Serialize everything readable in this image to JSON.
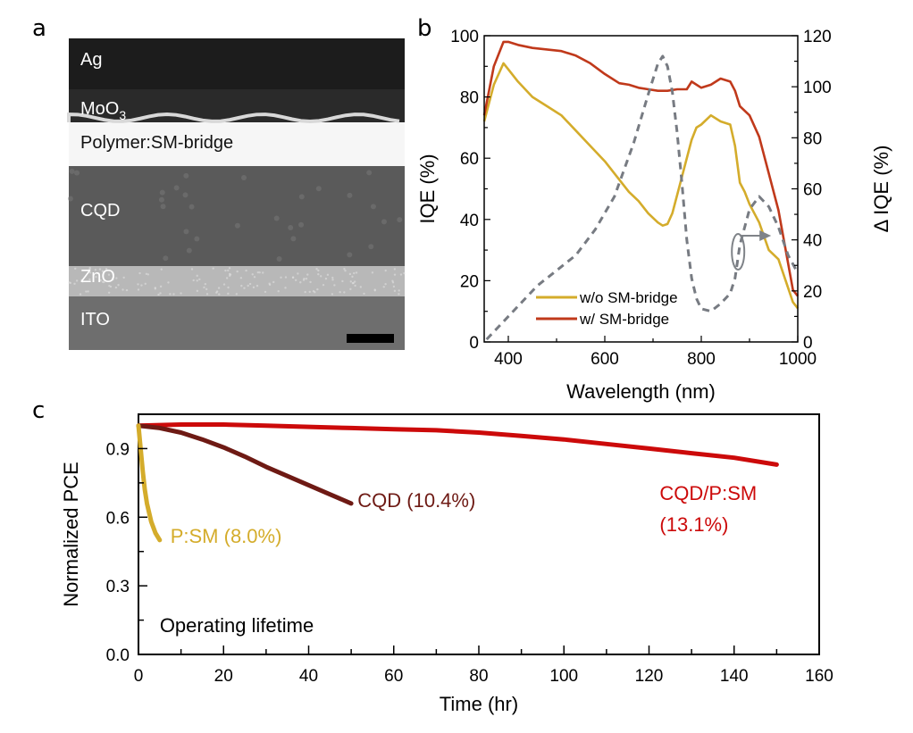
{
  "figure": {
    "panels": [
      "a",
      "b",
      "c"
    ]
  },
  "panel_a": {
    "letter": "a",
    "type": "TEM cross-section image",
    "layers": [
      {
        "name": "Ag",
        "label": "Ag",
        "tone": "#1c1c1c"
      },
      {
        "name": "MoO3",
        "label": "MoO",
        "subscript": "3",
        "tone": "#2a2a2a"
      },
      {
        "name": "Polymer:SM-bridge",
        "label": "Polymer:SM-bridge",
        "tone": "#f6f6f6"
      },
      {
        "name": "CQD",
        "label": "CQD",
        "tone": "#5a5a5a"
      },
      {
        "name": "ZnO",
        "label": "ZnO",
        "tone": "#b8b8b8"
      },
      {
        "name": "ITO",
        "label": "ITO",
        "tone": "#6e6e6e"
      }
    ],
    "scale_bar": true
  },
  "chart_data": [
    {
      "panel": "b",
      "letter": "b",
      "type": "line",
      "title": "",
      "xlabel": "Wavelength (nm)",
      "ylabel": "IQE (%)",
      "y2label": "Δ IQE (%)",
      "xlim": [
        350,
        1000
      ],
      "ylim": [
        0,
        100
      ],
      "y2lim": [
        0,
        120
      ],
      "xticks": [
        400,
        600,
        800,
        1000
      ],
      "yticks": [
        0,
        20,
        40,
        60,
        80,
        100
      ],
      "y2ticks": [
        0,
        20,
        40,
        60,
        80,
        100,
        120
      ],
      "grid": false,
      "legend": {
        "placement": "bottom-center",
        "entries": [
          "w/o SM-bridge",
          "w/   SM-bridge"
        ]
      },
      "annotation": {
        "type": "ellipse-arrow",
        "points_to": "right-axis",
        "near_x": 880
      },
      "series": [
        {
          "name": "w/o SM-bridge",
          "axis": "left",
          "color": "#d4ac2b",
          "style": "solid",
          "x": [
            350,
            370,
            390,
            400,
            420,
            450,
            480,
            510,
            540,
            570,
            600,
            630,
            650,
            670,
            690,
            710,
            720,
            730,
            740,
            760,
            780,
            790,
            800,
            820,
            840,
            860,
            870,
            880,
            890,
            900,
            920,
            940,
            960,
            975,
            990,
            1000
          ],
          "y": [
            72,
            84,
            91,
            89,
            85,
            80,
            77,
            74,
            69,
            64,
            59,
            53,
            49,
            46,
            42,
            39,
            38,
            38.5,
            42,
            54,
            66,
            70,
            71,
            74,
            72,
            71,
            64,
            52,
            49,
            45,
            39,
            30,
            27,
            20,
            13,
            11
          ]
        },
        {
          "name": "w/   SM-bridge",
          "axis": "left",
          "color": "#c0391b",
          "style": "solid",
          "x": [
            350,
            370,
            390,
            400,
            420,
            450,
            480,
            510,
            540,
            570,
            600,
            630,
            650,
            670,
            690,
            710,
            730,
            750,
            770,
            780,
            800,
            820,
            840,
            860,
            870,
            880,
            900,
            920,
            940,
            960,
            975,
            990,
            1000
          ],
          "y": [
            74,
            90,
            98,
            98,
            97,
            96,
            95.5,
            95,
            93.5,
            91,
            87.5,
            84.5,
            84,
            83,
            82.5,
            82,
            82,
            82.5,
            82.5,
            85,
            83,
            84,
            86,
            85,
            82,
            77,
            74,
            67,
            55,
            43,
            30,
            17,
            15
          ]
        },
        {
          "name": "Δ IQE",
          "axis": "right",
          "color": "#777b82",
          "style": "dashed",
          "x": [
            355,
            380,
            420,
            460,
            500,
            540,
            580,
            620,
            660,
            690,
            710,
            720,
            730,
            740,
            750,
            760,
            770,
            780,
            790,
            800,
            820,
            840,
            860,
            870,
            880,
            900,
            920,
            940,
            960,
            980,
            1000
          ],
          "y": [
            1,
            6,
            14,
            22,
            28,
            34,
            44,
            57,
            78,
            97,
            109,
            112,
            108,
            98,
            82,
            62,
            40,
            25,
            17,
            13,
            12,
            15,
            19,
            25,
            38,
            52,
            57,
            53,
            45,
            34,
            27
          ]
        }
      ]
    },
    {
      "panel": "c",
      "letter": "c",
      "type": "line",
      "title": "",
      "xlabel": "Time (hr)",
      "ylabel": "Normalized PCE",
      "xlim": [
        0,
        160
      ],
      "ylim": [
        0.0,
        1.05
      ],
      "xticks": [
        0,
        20,
        40,
        60,
        80,
        100,
        120,
        140,
        160
      ],
      "yticks": [
        0.0,
        0.3,
        0.6,
        0.9
      ],
      "ytick_labels": [
        "0.0",
        "0.3",
        "0.6",
        "0.9"
      ],
      "grid": false,
      "inset_text": "Operating lifetime",
      "series": [
        {
          "name": "P:SM (8.0%)",
          "label": "P:SM (8.0%)",
          "color": "#d4ac2b",
          "x": [
            0,
            0.5,
            1,
            1.5,
            2,
            3,
            4,
            5
          ],
          "y": [
            1.0,
            0.9,
            0.8,
            0.72,
            0.66,
            0.58,
            0.53,
            0.5
          ]
        },
        {
          "name": "CQD (10.4%)",
          "label": "CQD (10.4%)",
          "color": "#6e1a14",
          "x": [
            0,
            5,
            10,
            15,
            20,
            25,
            30,
            35,
            40,
            45,
            50
          ],
          "y": [
            1.0,
            0.99,
            0.97,
            0.94,
            0.905,
            0.865,
            0.82,
            0.78,
            0.74,
            0.7,
            0.66
          ]
        },
        {
          "name": "CQD/P:SM (13.1%)",
          "label_line1": "CQD/P:SM",
          "label_line2": "(13.1%)",
          "color": "#cc0a0a",
          "x": [
            0,
            10,
            20,
            30,
            40,
            50,
            60,
            70,
            80,
            90,
            100,
            110,
            120,
            130,
            140,
            150
          ],
          "y": [
            1.0,
            1.005,
            1.005,
            1.0,
            0.995,
            0.99,
            0.985,
            0.98,
            0.97,
            0.955,
            0.94,
            0.92,
            0.9,
            0.88,
            0.86,
            0.83
          ]
        }
      ]
    }
  ]
}
